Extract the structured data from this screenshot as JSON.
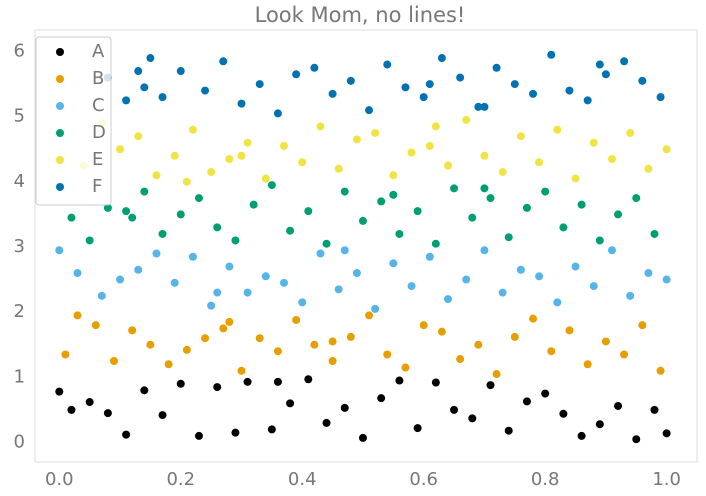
{
  "chart_data": {
    "type": "scatter",
    "title": "Look Mom, no lines!",
    "xlim": [
      -0.04,
      1.05
    ],
    "ylim": [
      -0.3,
      6.33
    ],
    "xticks": [
      {
        "value": 0,
        "label": "0.0"
      },
      0.2,
      0.4,
      0.6,
      0.8,
      {
        "value": 1,
        "label": "1.0"
      }
    ],
    "yticks": [
      0,
      1,
      2,
      3,
      4,
      5,
      6
    ],
    "legend": "upper left",
    "grid": false,
    "series": [
      {
        "name": "A",
        "color": "#000000",
        "x": [
          0.0,
          0.02,
          0.05,
          0.08,
          0.11,
          0.14,
          0.17,
          0.2,
          0.23,
          0.26,
          0.29,
          0.31,
          0.35,
          0.38,
          0.41,
          0.44,
          0.47,
          0.5,
          0.53,
          0.56,
          0.59,
          0.62,
          0.65,
          0.68,
          0.71,
          0.74,
          0.77,
          0.8,
          0.83,
          0.86,
          0.89,
          0.92,
          0.95,
          0.98,
          1.0,
          0.36
        ],
        "values": [
          0.78,
          0.5,
          0.62,
          0.45,
          0.12,
          0.8,
          0.42,
          0.9,
          0.1,
          0.85,
          0.15,
          0.93,
          0.2,
          0.6,
          0.97,
          0.3,
          0.53,
          0.07,
          0.68,
          0.95,
          0.22,
          0.92,
          0.5,
          0.37,
          0.88,
          0.18,
          0.63,
          0.75,
          0.44,
          0.1,
          0.28,
          0.56,
          0.05,
          0.5,
          0.14,
          0.93
        ]
      },
      {
        "name": "B",
        "color": "#E69F00",
        "x": [
          0.01,
          0.03,
          0.06,
          0.09,
          0.12,
          0.15,
          0.18,
          0.21,
          0.24,
          0.27,
          0.3,
          0.33,
          0.36,
          0.39,
          0.42,
          0.45,
          0.48,
          0.51,
          0.54,
          0.57,
          0.6,
          0.63,
          0.66,
          0.69,
          0.72,
          0.75,
          0.78,
          0.81,
          0.84,
          0.87,
          0.9,
          0.93,
          0.96,
          0.99,
          0.28,
          0.45
        ],
        "values": [
          1.35,
          1.95,
          1.8,
          1.25,
          1.72,
          1.5,
          1.2,
          1.42,
          1.6,
          1.75,
          1.1,
          1.6,
          1.4,
          1.88,
          1.5,
          1.25,
          1.62,
          1.95,
          1.35,
          1.15,
          1.8,
          1.7,
          1.28,
          1.5,
          1.05,
          1.62,
          1.9,
          1.4,
          1.72,
          1.2,
          1.55,
          1.35,
          1.8,
          1.1,
          1.85,
          1.55
        ]
      },
      {
        "name": "C",
        "color": "#56B4E9",
        "x": [
          0.0,
          0.03,
          0.07,
          0.1,
          0.13,
          0.16,
          0.19,
          0.22,
          0.25,
          0.28,
          0.31,
          0.34,
          0.37,
          0.4,
          0.43,
          0.46,
          0.49,
          0.52,
          0.55,
          0.58,
          0.61,
          0.64,
          0.67,
          0.7,
          0.73,
          0.76,
          0.79,
          0.82,
          0.85,
          0.88,
          0.91,
          0.94,
          0.97,
          1.0,
          0.47,
          0.26
        ],
        "values": [
          2.95,
          2.6,
          2.25,
          2.5,
          2.65,
          2.9,
          2.45,
          2.85,
          2.1,
          2.7,
          2.3,
          2.55,
          2.45,
          2.15,
          2.9,
          2.35,
          2.6,
          2.05,
          2.75,
          2.4,
          2.85,
          2.2,
          2.5,
          2.95,
          2.3,
          2.65,
          2.55,
          2.15,
          2.7,
          2.4,
          2.95,
          2.25,
          2.6,
          2.5,
          2.95,
          2.3
        ]
      },
      {
        "name": "D",
        "color": "#009E73",
        "x": [
          0.02,
          0.05,
          0.08,
          0.11,
          0.14,
          0.17,
          0.2,
          0.23,
          0.26,
          0.29,
          0.32,
          0.35,
          0.38,
          0.41,
          0.44,
          0.47,
          0.5,
          0.53,
          0.56,
          0.59,
          0.62,
          0.65,
          0.68,
          0.71,
          0.74,
          0.77,
          0.8,
          0.83,
          0.86,
          0.89,
          0.92,
          0.95,
          0.98,
          0.12,
          0.55,
          0.7
        ],
        "values": [
          3.45,
          3.1,
          3.6,
          3.55,
          3.85,
          3.2,
          3.5,
          3.75,
          3.3,
          3.1,
          3.65,
          3.95,
          3.25,
          3.55,
          3.05,
          3.85,
          3.4,
          3.7,
          3.2,
          3.55,
          3.05,
          3.9,
          3.45,
          3.75,
          3.15,
          3.6,
          3.85,
          3.3,
          3.65,
          3.1,
          3.5,
          3.75,
          3.2,
          3.45,
          3.8,
          3.9
        ]
      },
      {
        "name": "E",
        "color": "#F0E442",
        "x": [
          0.04,
          0.07,
          0.1,
          0.13,
          0.16,
          0.19,
          0.22,
          0.25,
          0.28,
          0.31,
          0.34,
          0.37,
          0.4,
          0.43,
          0.46,
          0.49,
          0.52,
          0.55,
          0.58,
          0.61,
          0.64,
          0.67,
          0.7,
          0.73,
          0.76,
          0.79,
          0.82,
          0.85,
          0.88,
          0.91,
          0.94,
          0.97,
          1.0,
          0.21,
          0.3,
          0.62
        ],
        "values": [
          4.25,
          4.9,
          4.5,
          4.7,
          4.1,
          4.4,
          4.8,
          4.15,
          4.35,
          4.6,
          4.05,
          4.55,
          4.3,
          4.85,
          4.2,
          4.65,
          4.75,
          4.1,
          4.45,
          4.55,
          4.25,
          4.95,
          4.4,
          4.15,
          4.7,
          4.3,
          4.8,
          4.05,
          4.6,
          4.35,
          4.75,
          4.2,
          4.5,
          4.0,
          4.4,
          4.85
        ]
      },
      {
        "name": "F",
        "color": "#0072B2",
        "x": [
          0.08,
          0.11,
          0.14,
          0.15,
          0.17,
          0.2,
          0.24,
          0.27,
          0.3,
          0.33,
          0.36,
          0.39,
          0.42,
          0.45,
          0.48,
          0.51,
          0.54,
          0.57,
          0.6,
          0.63,
          0.66,
          0.69,
          0.72,
          0.75,
          0.78,
          0.81,
          0.84,
          0.87,
          0.9,
          0.93,
          0.96,
          0.99,
          0.13,
          0.61,
          0.7,
          0.89
        ],
        "values": [
          5.6,
          5.25,
          5.45,
          5.9,
          5.3,
          5.7,
          5.4,
          5.85,
          5.2,
          5.5,
          5.05,
          5.65,
          5.75,
          5.35,
          5.55,
          5.1,
          5.8,
          5.45,
          5.3,
          5.9,
          5.6,
          5.15,
          5.75,
          5.5,
          5.35,
          5.95,
          5.4,
          5.25,
          5.65,
          5.85,
          5.55,
          5.3,
          5.7,
          5.5,
          5.15,
          5.8
        ]
      }
    ]
  }
}
